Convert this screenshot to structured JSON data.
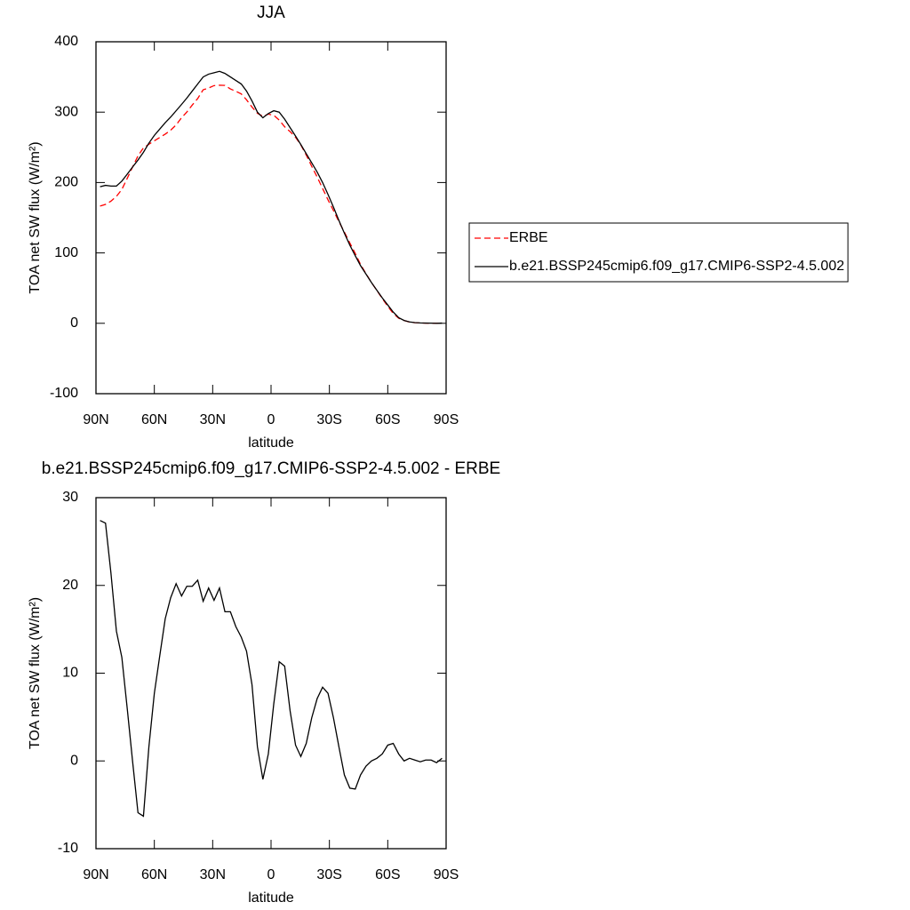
{
  "chart_data": [
    {
      "type": "line",
      "title": "JJA",
      "xlabel": "latitude",
      "ylabel": "TOA net SW flux (W/m²)",
      "x": [
        87.9,
        85.1,
        82.3,
        79.5,
        76.7,
        73.9,
        71.2,
        68.4,
        65.6,
        62.8,
        60.0,
        57.2,
        54.4,
        51.6,
        48.8,
        46.0,
        43.3,
        40.5,
        37.7,
        34.9,
        32.1,
        29.3,
        26.5,
        23.7,
        20.9,
        18.1,
        15.3,
        12.6,
        9.8,
        7.0,
        4.2,
        1.4,
        -1.4,
        -4.2,
        -7.0,
        -9.8,
        -12.6,
        -15.3,
        -18.1,
        -20.9,
        -23.7,
        -26.5,
        -29.3,
        -32.1,
        -34.9,
        -37.7,
        -40.5,
        -43.3,
        -46.0,
        -48.8,
        -51.6,
        -54.4,
        -57.2,
        -60.0,
        -62.8,
        -65.6,
        -68.4,
        -71.2,
        -73.9,
        -76.7,
        -79.5,
        -82.3,
        -85.1,
        -87.9
      ],
      "series": [
        {
          "name": "ERBE",
          "color": "#ff0000",
          "line_style": "dashed",
          "values": [
            166.6,
            168.9,
            173.6,
            180.2,
            190.2,
            206.1,
            222,
            237.9,
            249.3,
            254.4,
            259.3,
            264,
            268.8,
            274.4,
            281.8,
            292.2,
            300.1,
            310.1,
            319.4,
            331.8,
            334.3,
            337.7,
            338.3,
            338,
            333,
            329.7,
            325.9,
            317.5,
            307.3,
            298.4,
            294.1,
            297.2,
            295.5,
            288.7,
            279.2,
            272.3,
            264.2,
            253.5,
            239,
            223.1,
            207.9,
            191.6,
            175.3,
            160.1,
            144.4,
            129.6,
            114.1,
            99.2,
            83.6,
            70.6,
            58,
            46.7,
            35.2,
            24.2,
            14,
            7.2,
            4,
            1.7,
            0.9,
            0.6,
            0.2,
            0.1,
            0.2,
            0
          ]
        },
        {
          "name": "b.e21.BSSP245cmip6.f09_g17.CMIP6-SSP2-4.5.002",
          "color": "#000000",
          "line_style": "solid",
          "values": [
            194,
            196,
            195,
            195,
            202,
            212,
            222,
            232,
            243,
            256,
            267,
            276,
            285,
            293,
            302,
            311,
            320,
            330,
            340,
            350,
            354,
            356,
            358,
            355,
            350,
            345,
            340,
            330,
            316,
            300,
            292,
            298,
            302,
            300,
            290,
            278,
            266,
            254,
            241,
            228,
            215,
            200,
            183,
            165,
            146,
            128,
            111,
            96,
            82,
            70,
            58,
            47,
            36,
            26,
            16,
            8,
            4,
            2,
            1,
            0.5,
            0.3,
            0.2,
            0,
            0.3
          ]
        }
      ],
      "xlim": [
        90,
        -90
      ],
      "xticks": [
        {
          "value": 90,
          "label": "90N"
        },
        {
          "value": 60,
          "label": "60N"
        },
        {
          "value": 30,
          "label": "30N"
        },
        0,
        {
          "value": -30,
          "label": "30S"
        },
        {
          "value": -60,
          "label": "60S"
        },
        {
          "value": -90,
          "label": "90S"
        }
      ],
      "ylim": [
        -100,
        400
      ],
      "yticks": [
        -100,
        0,
        100,
        200,
        300,
        400
      ],
      "legend": "outside-right"
    },
    {
      "type": "line",
      "title": "b.e21.BSSP245cmip6.f09_g17.CMIP6-SSP2-4.5.002 - ERBE",
      "xlabel": "latitude",
      "ylabel": "TOA net SW flux (W/m²)",
      "x": [
        87.9,
        85.1,
        82.3,
        79.5,
        76.7,
        73.9,
        71.2,
        68.4,
        65.6,
        62.8,
        60.0,
        57.2,
        54.4,
        51.6,
        48.8,
        46.0,
        43.3,
        40.5,
        37.7,
        34.9,
        32.1,
        29.3,
        26.5,
        23.7,
        20.9,
        18.1,
        15.3,
        12.6,
        9.8,
        7.0,
        4.2,
        1.4,
        -1.4,
        -4.2,
        -7.0,
        -9.8,
        -12.6,
        -15.3,
        -18.1,
        -20.9,
        -23.7,
        -26.5,
        -29.3,
        -32.1,
        -34.9,
        -37.7,
        -40.5,
        -43.3,
        -46.0,
        -48.8,
        -51.6,
        -54.4,
        -57.2,
        -60.0,
        -62.8,
        -65.6,
        -68.4,
        -71.2,
        -73.9,
        -76.7,
        -79.5,
        -82.3,
        -85.1,
        -87.9
      ],
      "color": "#000000",
      "values": [
        27.4,
        27.1,
        21.4,
        14.8,
        11.8,
        5.9,
        0,
        -5.9,
        -6.3,
        1.6,
        7.7,
        12,
        16.2,
        18.6,
        20.2,
        18.8,
        19.9,
        19.9,
        20.6,
        18.2,
        19.7,
        18.3,
        19.7,
        17,
        17,
        15.3,
        14.1,
        12.5,
        8.7,
        1.6,
        -2.1,
        0.8,
        6.5,
        11.3,
        10.8,
        5.7,
        1.8,
        0.5,
        2,
        4.9,
        7.1,
        8.4,
        7.7,
        4.9,
        1.6,
        -1.6,
        -3.1,
        -3.2,
        -1.6,
        -0.6,
        0,
        0.3,
        0.8,
        1.8,
        2,
        0.8,
        0,
        0.3,
        0.1,
        -0.1,
        0.1,
        0.1,
        -0.2,
        0.3
      ],
      "xlim": [
        90,
        -90
      ],
      "xticks": [
        {
          "value": 90,
          "label": "90N"
        },
        {
          "value": 60,
          "label": "60N"
        },
        {
          "value": 30,
          "label": "30N"
        },
        0,
        {
          "value": -30,
          "label": "30S"
        },
        {
          "value": -60,
          "label": "60S"
        },
        {
          "value": -90,
          "label": "90S"
        }
      ],
      "ylim": [
        -10,
        30
      ],
      "yticks": [
        -10,
        0,
        10,
        20,
        30
      ]
    }
  ]
}
